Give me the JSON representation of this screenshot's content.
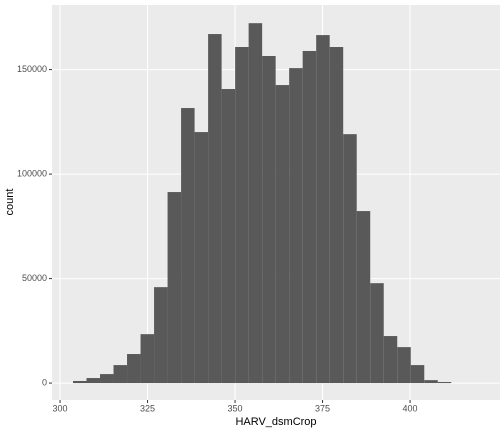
{
  "chart_data": {
    "type": "histogram",
    "x_label": "HARV_dsmCrop",
    "y_label": "count",
    "bins": [
      303.7,
      307.56,
      311.42,
      315.28,
      319.14,
      323.0,
      326.86,
      330.72,
      334.58,
      338.44,
      342.3,
      346.16,
      350.02,
      353.88,
      357.74,
      361.6,
      365.46,
      369.32,
      373.18,
      377.04,
      380.9,
      384.76,
      388.62,
      392.48,
      396.34,
      400.2,
      404.06,
      407.92,
      411.78
    ],
    "values": [
      1000,
      2400,
      4300,
      8600,
      13900,
      23400,
      45900,
      91400,
      131600,
      120100,
      167000,
      140700,
      160800,
      172200,
      156500,
      142600,
      150700,
      158900,
      166500,
      160800,
      119100,
      82300,
      47800,
      22500,
      17200,
      8600,
      1400,
      500
    ],
    "color": "#595959",
    "xlim": [
      297.7,
      425.7
    ],
    "ylim": [
      -8100,
      180900
    ],
    "xticks": [
      300,
      325,
      350,
      375,
      400
    ],
    "yticks": [
      0,
      50000,
      100000,
      150000
    ],
    "grid": true
  }
}
